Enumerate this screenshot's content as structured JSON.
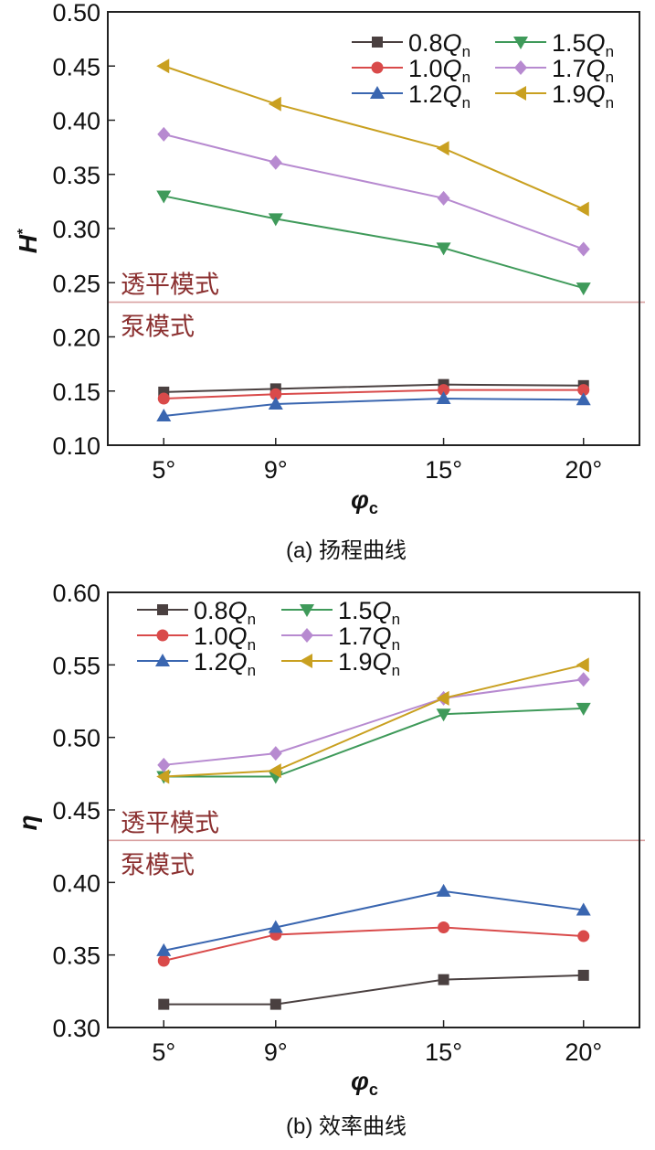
{
  "chart_data": [
    {
      "type": "line",
      "caption": "(a) 扬程曲线",
      "xlabel": "φ",
      "xlabel_sub": "c",
      "ylabel": "H",
      "ylabel_sup": "*",
      "x": [
        5,
        9,
        15,
        20
      ],
      "x_tick_labels": [
        "5°",
        "9°",
        "15°",
        "20°"
      ],
      "xlim": [
        3,
        22
      ],
      "ylim": [
        0.1,
        0.5
      ],
      "y_ticks": [
        0.1,
        0.15,
        0.2,
        0.25,
        0.3,
        0.35,
        0.4,
        0.45,
        0.5
      ],
      "y_tick_labels": [
        "0.10",
        "0.15",
        "0.20",
        "0.25",
        "0.30",
        "0.35",
        "0.40",
        "0.45",
        "0.50"
      ],
      "legend_position": "top-right",
      "grid": false,
      "reference_line": {
        "y": 0.232,
        "label_above": "透平模式",
        "label_below": "泵模式",
        "color": "#d9a0a0",
        "label_color": "#8b3030"
      },
      "series": [
        {
          "name": "0.8",
          "unit": "Q",
          "unit_sub": "n",
          "marker": "square",
          "color": "#4a4040",
          "values": [
            0.149,
            0.152,
            0.156,
            0.155
          ]
        },
        {
          "name": "1.0",
          "unit": "Q",
          "unit_sub": "n",
          "marker": "circle",
          "color": "#d94a4a",
          "values": [
            0.143,
            0.147,
            0.151,
            0.151
          ]
        },
        {
          "name": "1.2",
          "unit": "Q",
          "unit_sub": "n",
          "marker": "triangle-up",
          "color": "#3a66b0",
          "values": [
            0.127,
            0.138,
            0.143,
            0.142
          ]
        },
        {
          "name": "1.5",
          "unit": "Q",
          "unit_sub": "n",
          "marker": "triangle-down",
          "color": "#3f9a5a",
          "values": [
            0.33,
            0.309,
            0.282,
            0.245
          ]
        },
        {
          "name": "1.7",
          "unit": "Q",
          "unit_sub": "n",
          "marker": "diamond",
          "color": "#b78ad0",
          "values": [
            0.387,
            0.361,
            0.328,
            0.281
          ]
        },
        {
          "name": "1.9",
          "unit": "Q",
          "unit_sub": "n",
          "marker": "triangle-left",
          "color": "#c9a020",
          "values": [
            0.45,
            0.415,
            0.374,
            0.318
          ]
        }
      ]
    },
    {
      "type": "line",
      "caption": "(b) 效率曲线",
      "xlabel": "φ",
      "xlabel_sub": "c",
      "ylabel": "η",
      "x": [
        5,
        9,
        15,
        20
      ],
      "x_tick_labels": [
        "5°",
        "9°",
        "15°",
        "20°"
      ],
      "xlim": [
        3,
        22
      ],
      "ylim": [
        0.3,
        0.6
      ],
      "y_ticks": [
        0.3,
        0.35,
        0.4,
        0.45,
        0.5,
        0.55,
        0.6
      ],
      "y_tick_labels": [
        "0.30",
        "0.35",
        "0.40",
        "0.45",
        "0.50",
        "0.55",
        "0.60"
      ],
      "legend_position": "top-left",
      "grid": false,
      "reference_line": {
        "y": 0.429,
        "label_above": "透平模式",
        "label_below": "泵模式",
        "color": "#d9a0a0",
        "label_color": "#8b3030"
      },
      "series": [
        {
          "name": "0.8",
          "unit": "Q",
          "unit_sub": "n",
          "marker": "square",
          "color": "#4a4040",
          "values": [
            0.316,
            0.316,
            0.333,
            0.336
          ]
        },
        {
          "name": "1.0",
          "unit": "Q",
          "unit_sub": "n",
          "marker": "circle",
          "color": "#d94a4a",
          "values": [
            0.346,
            0.364,
            0.369,
            0.363
          ]
        },
        {
          "name": "1.2",
          "unit": "Q",
          "unit_sub": "n",
          "marker": "triangle-up",
          "color": "#3a66b0",
          "values": [
            0.353,
            0.369,
            0.394,
            0.381
          ]
        },
        {
          "name": "1.5",
          "unit": "Q",
          "unit_sub": "n",
          "marker": "triangle-down",
          "color": "#3f9a5a",
          "values": [
            0.473,
            0.473,
            0.516,
            0.52
          ]
        },
        {
          "name": "1.7",
          "unit": "Q",
          "unit_sub": "n",
          "marker": "diamond",
          "color": "#b78ad0",
          "values": [
            0.481,
            0.489,
            0.527,
            0.54
          ]
        },
        {
          "name": "1.9",
          "unit": "Q",
          "unit_sub": "n",
          "marker": "triangle-left",
          "color": "#c9a020",
          "values": [
            0.473,
            0.477,
            0.527,
            0.55
          ]
        }
      ]
    }
  ]
}
